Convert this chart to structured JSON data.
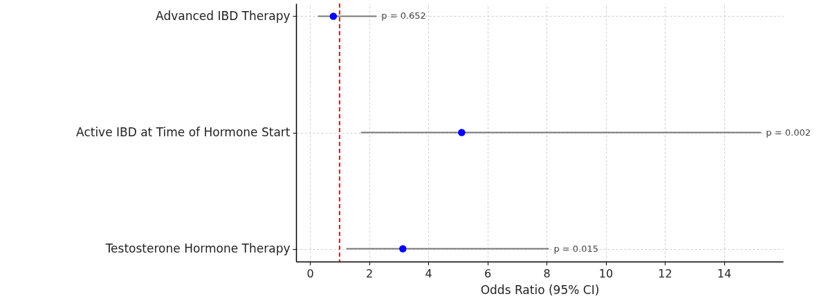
{
  "chart_data": {
    "type": "scatter",
    "orientation": "horizontal",
    "xlabel": "Odds Ratio (95% CI)",
    "categories": [
      "Advanced IBD Therapy",
      "Active IBD at Time of Hormone Start",
      "Testosterone Hormone Therapy"
    ],
    "values": [
      0.79,
      5.13,
      3.14
    ],
    "errors": [
      [
        0.27,
        2.25
      ],
      [
        1.72,
        15.26
      ],
      [
        1.23,
        8.08
      ]
    ],
    "color": "#0000ff",
    "marker": "circle",
    "xlim": [
      -0.47,
      16
    ],
    "xticks": [
      0,
      2,
      4,
      6,
      8,
      10,
      12,
      14
    ],
    "grid": true,
    "ref_lines": [
      {
        "axis": "x",
        "value": 1,
        "color": "#ff0000",
        "line_style": "dashed"
      }
    ],
    "annotations": [
      {
        "text": "p = 0.652",
        "x": 2.25,
        "y": "Advanced IBD Therapy"
      },
      {
        "text": "p = 0.002",
        "x": 15.26,
        "y": "Active IBD at Time of Hormone Start"
      },
      {
        "text": "p = 0.015",
        "x": 8.08,
        "y": "Testosterone Hormone Therapy"
      }
    ]
  }
}
